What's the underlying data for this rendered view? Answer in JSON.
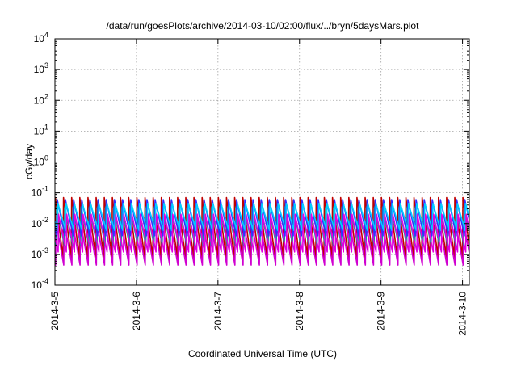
{
  "chart_data": {
    "type": "line",
    "title": "/data/run/goesPlots/archive/2014-03-10/02:00/flux/../bryn/5daysMars.plot",
    "xlabel": "Coordinated Universal Time (UTC)",
    "ylabel": "cGy/day",
    "yscale": "log",
    "ylim": [
      0.0001,
      10000
    ],
    "xlim": [
      "2014-03-05 00:00",
      "2014-03-10 02:00"
    ],
    "x_ticks": [
      "2014-3-5",
      "2014-3-6",
      "2014-3-7",
      "2014-3-8",
      "2014-3-9",
      "2014-3-10"
    ],
    "y_ticks": [
      {
        "base": "10",
        "exp": "-4"
      },
      {
        "base": "10",
        "exp": "-3"
      },
      {
        "base": "10",
        "exp": "-2"
      },
      {
        "base": "10",
        "exp": "-1"
      },
      {
        "base": "10",
        "exp": "0"
      },
      {
        "base": "10",
        "exp": "1"
      },
      {
        "base": "10",
        "exp": "2"
      },
      {
        "base": "10",
        "exp": "3"
      },
      {
        "base": "10",
        "exp": "4"
      }
    ],
    "grid": true,
    "legend": "none",
    "pattern": {
      "period_hours": 2.4,
      "cycles": 51,
      "start": "2014-03-05 00:00",
      "description_values": "sawtooth: sharp rise at start of each cycle, exponential decay until next cycle"
    },
    "series": [
      {
        "color": "#c00000",
        "peak": 0.07,
        "trough": 0.0008
      },
      {
        "color": "#d000d0",
        "peak": 0.012,
        "trough": 0.00045
      },
      {
        "color": "#00a0a0",
        "peak": 0.035,
        "trough": 0.002
      },
      {
        "color": "#3030ff",
        "peak": 0.06,
        "trough": 0.004
      },
      {
        "color": "#00d0ff",
        "peak": 0.045,
        "trough": 0.006
      },
      {
        "color": "#e000e0",
        "peak": 0.02,
        "trough": 0.0012
      }
    ]
  }
}
